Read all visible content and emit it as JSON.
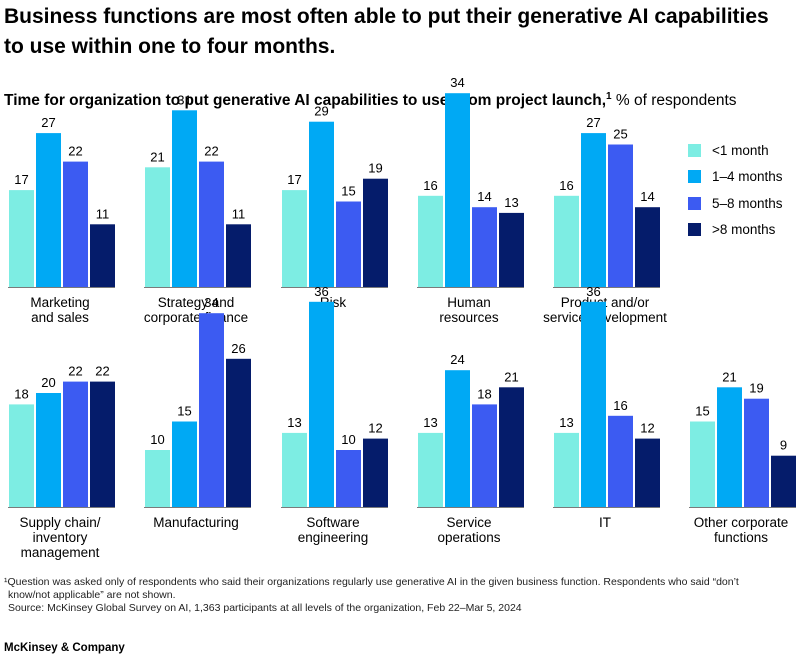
{
  "title": "Business functions are most often able to put their generative AI capabilities to use within one to four months.",
  "subtitle": {
    "main": "Time for organization to put generative AI capabilities to use, from project launch,",
    "sup": "1",
    "unit": " % of respondents"
  },
  "footnote": {
    "line1": "¹Question was asked only of respondents who said their organizations regularly use generative AI in the given business function. Respondents who said “don’t",
    "line2": "know/not applicable” are not shown.",
    "source": "Source: McKinsey Global Survey on AI, 1,363 participants at all levels of the organization, Feb 22–Mar 5, 2024"
  },
  "brand": "McKinsey & Company",
  "colors": {
    "lt1": "#7DEDE3",
    "m1to4": "#00A9F4",
    "m5to8": "#3C5BF2",
    "gt8": "#051C6B"
  },
  "chart_data": {
    "type": "bar",
    "series": [
      {
        "name": "<1 month",
        "color": "#7DEDE3"
      },
      {
        "name": "1–4 months",
        "color": "#00A9F4"
      },
      {
        "name": "5–8 months",
        "color": "#3C5BF2"
      },
      {
        "name": ">8 months",
        "color": "#051C6B"
      }
    ],
    "legend": "right",
    "panels": [
      {
        "label": [
          "Marketing",
          "and sales"
        ],
        "values": [
          17,
          27,
          22,
          11
        ]
      },
      {
        "label": [
          "Strategy and",
          "corporate finance"
        ],
        "values": [
          21,
          31,
          22,
          11
        ]
      },
      {
        "label": [
          "Risk"
        ],
        "values": [
          17,
          29,
          15,
          19
        ]
      },
      {
        "label": [
          "Human",
          "resources"
        ],
        "values": [
          16,
          34,
          14,
          13
        ]
      },
      {
        "label": [
          "Product and/or",
          "service development"
        ],
        "values": [
          16,
          27,
          25,
          14
        ]
      },
      {
        "label": [
          "Supply chain/",
          "inventory",
          "management"
        ],
        "values": [
          18,
          20,
          22,
          22
        ]
      },
      {
        "label": [
          "Manufacturing"
        ],
        "values": [
          10,
          15,
          34,
          26
        ]
      },
      {
        "label": [
          "Software",
          "engineering"
        ],
        "values": [
          13,
          36,
          10,
          12
        ]
      },
      {
        "label": [
          "Service",
          "operations"
        ],
        "values": [
          13,
          24,
          18,
          21
        ]
      },
      {
        "label": [
          "IT"
        ],
        "values": [
          13,
          36,
          16,
          12
        ]
      },
      {
        "label": [
          "Other corporate",
          "functions"
        ],
        "values": [
          15,
          21,
          19,
          9
        ]
      }
    ]
  }
}
